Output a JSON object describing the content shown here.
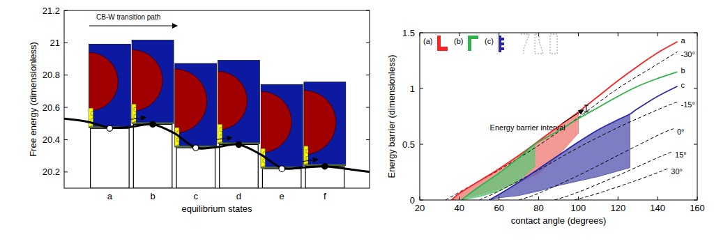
{
  "chart_data": [
    {
      "type": "bar",
      "x_label": "equilibrium states",
      "y_label": "Free energy (dimensionless)",
      "annotations": [
        "CB-W transition path"
      ],
      "categories": [
        "a",
        "b",
        "c",
        "d",
        "e",
        "f"
      ],
      "ylim": [
        20.1,
        21.2
      ],
      "yticks": [
        20.2,
        20.4,
        20.6,
        20.8,
        21,
        21.2
      ],
      "series": [
        {
          "type": "bar",
          "color": "#ffffff",
          "marker": "circle",
          "values": [
            20.47,
            20.495,
            20.35,
            20.37,
            20.22,
            20.235
          ]
        },
        {
          "type": "line",
          "color": "#000000",
          "line_style": "solid",
          "x": [
            -1.06,
            -0.5,
            0,
            0.5,
            1,
            1.5,
            2,
            2.5,
            3,
            3.5,
            4,
            4.5,
            5,
            5.5,
            6.04
          ],
          "values": [
            20.53,
            20.51,
            20.475,
            20.48,
            20.495,
            20.44,
            20.35,
            20.355,
            20.37,
            20.31,
            20.225,
            20.228,
            20.235,
            20.22,
            20.2
          ]
        }
      ]
    },
    {
      "type": "line",
      "x_label": "contact angle (degrees)",
      "y_label": "Energy barrier (dimensionless)",
      "inset_labels": [
        "(a)",
        "(b)",
        "(c)"
      ],
      "annotations": [
        {
          "text": "Energy barrier interval",
          "x": 104,
          "interval": [
            0.79,
            0.85
          ]
        }
      ],
      "xlim": [
        20,
        160
      ],
      "xticks": [
        20,
        40,
        60,
        80,
        100,
        120,
        140,
        160
      ],
      "ylim": [
        0,
        1.5
      ],
      "yticks": [
        0,
        0.5,
        1,
        1.5
      ],
      "series": [
        {
          "type": "area",
          "color": "#f08078",
          "x": [
            36,
            40,
            50,
            60,
            70,
            80,
            90,
            100
          ],
          "values": [
            0,
            0.06,
            0.17,
            0.28,
            0.4,
            0.53,
            0.66,
            0.79
          ],
          "lower": [
            0,
            0.01,
            0.05,
            0.1,
            0.16,
            0.24,
            0.4,
            0.6
          ]
        },
        {
          "type": "area",
          "color": "#66c47a",
          "x": [
            41,
            50,
            60,
            70,
            78
          ],
          "values": [
            0,
            0.12,
            0.24,
            0.38,
            0.5
          ],
          "lower": [
            0,
            0.03,
            0.08,
            0.17,
            0.3
          ]
        },
        {
          "type": "area",
          "color": "#5c5cb4",
          "x": [
            55,
            60,
            70,
            80,
            90,
            100,
            110,
            120,
            126
          ],
          "values": [
            0,
            0.05,
            0.16,
            0.28,
            0.4,
            0.52,
            0.63,
            0.72,
            0.77
          ],
          "lower": [
            0,
            0.02,
            0.04,
            0.08,
            0.13,
            0.17,
            0.21,
            0.26,
            0.29
          ]
        },
        {
          "name": "a",
          "color": "#ff2020",
          "line_style": "solid",
          "x": [
            36,
            40,
            50,
            60,
            70,
            80,
            90,
            100,
            110,
            120,
            130,
            140,
            150
          ],
          "values": [
            0,
            0.06,
            0.17,
            0.28,
            0.4,
            0.53,
            0.66,
            0.79,
            0.93,
            1.07,
            1.2,
            1.32,
            1.42
          ]
        },
        {
          "name": "b",
          "color": "#2db34a",
          "line_style": "solid",
          "x": [
            41,
            50,
            60,
            70,
            78,
            90,
            100,
            110,
            120,
            130,
            140,
            150
          ],
          "values": [
            0,
            0.12,
            0.24,
            0.38,
            0.5,
            0.62,
            0.73,
            0.83,
            0.93,
            1.02,
            1.09,
            1.15
          ]
        },
        {
          "name": "c",
          "color": "#2a2aa8",
          "line_style": "solid",
          "x": [
            55,
            60,
            70,
            80,
            90,
            100,
            110,
            120,
            126,
            130,
            140,
            150
          ],
          "values": [
            0,
            0.05,
            0.16,
            0.28,
            0.4,
            0.52,
            0.63,
            0.72,
            0.77,
            0.82,
            0.93,
            1.02
          ]
        },
        {
          "name": "-30°",
          "color": "#000000",
          "line_style": "dashed",
          "x": [
            33,
            40,
            50,
            60,
            80,
            100,
            120,
            140,
            150
          ],
          "values": [
            0,
            0.07,
            0.17,
            0.27,
            0.49,
            0.74,
            1.0,
            1.22,
            1.33
          ]
        },
        {
          "name": "-15°",
          "color": "#000000",
          "line_style": "dashed",
          "x": [
            50,
            60,
            80,
            100,
            120,
            140,
            150
          ],
          "values": [
            0,
            0.08,
            0.27,
            0.47,
            0.65,
            0.81,
            0.88
          ]
        },
        {
          "name": "0°",
          "color": "#000000",
          "line_style": "dashed",
          "x": [
            70,
            80,
            100,
            120,
            140,
            148
          ],
          "values": [
            0,
            0.06,
            0.22,
            0.4,
            0.58,
            0.64
          ]
        },
        {
          "name": "15°",
          "color": "#000000",
          "line_style": "dashed",
          "x": [
            88,
            100,
            120,
            140,
            147
          ],
          "values": [
            0,
            0.07,
            0.22,
            0.38,
            0.43
          ]
        },
        {
          "name": "30°",
          "color": "#000000",
          "line_style": "dashed",
          "x": [
            98,
            110,
            130,
            145
          ],
          "values": [
            0,
            0.06,
            0.18,
            0.28
          ]
        }
      ]
    }
  ]
}
